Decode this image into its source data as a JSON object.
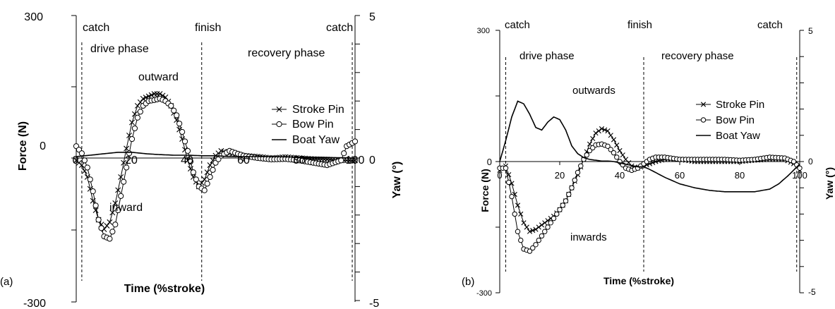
{
  "chart_data": [
    {
      "panel_label": "(a)",
      "type": "line",
      "xlabel": "Time (%stroke)",
      "ylabel": "Force (N)",
      "y2label": "Yaw (°)",
      "xlim": [
        0,
        100
      ],
      "ylim": [
        -300,
        300
      ],
      "y2lim": [
        -5,
        5
      ],
      "x_ticks": [
        "0",
        "20",
        "40",
        "60",
        "80",
        "100"
      ],
      "y_ticks": [
        "300",
        "0",
        "-300"
      ],
      "y2_ticks": [
        "5",
        "0",
        "-5"
      ],
      "phase_lines": [
        2,
        45,
        99
      ],
      "annotations": [
        "catch",
        "finish",
        "catch",
        "drive phase",
        "recovery phase",
        "outward",
        "inward"
      ],
      "legend": [
        "Stroke Pin",
        "Bow Pin",
        "Boat Yaw"
      ],
      "legend_position": "right",
      "series": [
        {
          "name": "Stroke Pin",
          "axis": "left",
          "marker": "x",
          "x": [
            0,
            2,
            4,
            6,
            8,
            10,
            12,
            14,
            16,
            18,
            20,
            22,
            24,
            26,
            28,
            30,
            32,
            34,
            36,
            38,
            40,
            42,
            44,
            46,
            48,
            50,
            52,
            55,
            60,
            65,
            70,
            75,
            80,
            85,
            90,
            95,
            100
          ],
          "y": [
            -5,
            -15,
            -40,
            -90,
            -130,
            -150,
            -135,
            -95,
            -40,
            20,
            75,
            110,
            125,
            130,
            135,
            135,
            128,
            110,
            80,
            40,
            -5,
            -40,
            -60,
            -45,
            -15,
            5,
            15,
            10,
            5,
            3,
            0,
            2,
            0,
            -2,
            -3,
            -5,
            -5
          ]
        },
        {
          "name": "Bow Pin",
          "axis": "left",
          "marker": "o",
          "x": [
            0,
            2,
            4,
            6,
            8,
            10,
            12,
            14,
            16,
            18,
            20,
            22,
            24,
            26,
            28,
            30,
            32,
            34,
            36,
            38,
            40,
            42,
            44,
            46,
            48,
            50,
            52,
            55,
            60,
            65,
            70,
            75,
            80,
            85,
            90,
            95,
            97,
            100
          ],
          "y": [
            25,
            10,
            -20,
            -70,
            -130,
            -165,
            -170,
            -140,
            -80,
            -20,
            40,
            85,
            110,
            120,
            122,
            125,
            120,
            110,
            90,
            55,
            15,
            -30,
            -60,
            -68,
            -40,
            -10,
            5,
            15,
            5,
            0,
            -3,
            -2,
            -5,
            -10,
            -15,
            -5,
            25,
            35
          ]
        },
        {
          "name": "Boat Yaw",
          "axis": "right",
          "marker": "none",
          "x": [
            0,
            5,
            10,
            15,
            20,
            25,
            30,
            35,
            40,
            45,
            50,
            55,
            60,
            70,
            80,
            90,
            100
          ],
          "y": [
            0.05,
            0.1,
            0.15,
            0.2,
            0.2,
            0.15,
            0.12,
            0.1,
            0.1,
            0.08,
            0.08,
            0.05,
            0.05,
            0.05,
            0.03,
            0.02,
            0.0
          ]
        }
      ]
    },
    {
      "panel_label": "(b)",
      "type": "line",
      "xlabel": "Time (%stroke)",
      "ylabel": "Force (N)",
      "y2label": "Yaw (°)",
      "xlim": [
        0,
        100
      ],
      "ylim": [
        -300,
        300
      ],
      "y2lim": [
        -5,
        5
      ],
      "x_ticks": [
        "0",
        "20",
        "40",
        "60",
        "80",
        "100"
      ],
      "y_ticks": [
        "300",
        "0",
        "-300"
      ],
      "y2_ticks": [
        "5",
        "0",
        "-5"
      ],
      "phase_lines": [
        2,
        48,
        99
      ],
      "annotations": [
        "catch",
        "finish",
        "catch",
        "drive phase",
        "recovery phase",
        "outwards",
        "inwards"
      ],
      "legend": [
        "Stroke Pin",
        "Bow Pin",
        "Boat Yaw"
      ],
      "legend_position": "right",
      "series": [
        {
          "name": "Stroke Pin",
          "axis": "left",
          "marker": "x",
          "x": [
            0,
            2,
            4,
            6,
            8,
            10,
            12,
            14,
            16,
            18,
            20,
            22,
            24,
            26,
            28,
            30,
            32,
            34,
            36,
            38,
            40,
            42,
            44,
            46,
            48,
            50,
            52,
            55,
            60,
            65,
            70,
            75,
            80,
            85,
            90,
            95,
            98,
            100
          ],
          "y": [
            -20,
            -10,
            -50,
            -100,
            -140,
            -160,
            -155,
            -145,
            -135,
            -125,
            -110,
            -90,
            -60,
            -30,
            5,
            40,
            65,
            75,
            70,
            50,
            25,
            5,
            -10,
            -15,
            -10,
            -5,
            0,
            5,
            5,
            0,
            0,
            0,
            0,
            3,
            5,
            5,
            -5,
            -20
          ]
        },
        {
          "name": "Bow Pin",
          "axis": "left",
          "marker": "o",
          "x": [
            0,
            2,
            4,
            6,
            8,
            10,
            12,
            14,
            16,
            18,
            20,
            22,
            24,
            26,
            28,
            30,
            32,
            34,
            36,
            38,
            40,
            42,
            44,
            46,
            48,
            50,
            52,
            55,
            60,
            65,
            70,
            75,
            80,
            85,
            90,
            95,
            98,
            100
          ],
          "y": [
            -15,
            -15,
            -80,
            -160,
            -200,
            -205,
            -190,
            -170,
            -150,
            -130,
            -110,
            -90,
            -60,
            -25,
            5,
            25,
            38,
            40,
            35,
            20,
            0,
            -15,
            -20,
            -15,
            -5,
            5,
            10,
            10,
            5,
            5,
            5,
            5,
            3,
            5,
            10,
            8,
            0,
            -15
          ]
        },
        {
          "name": "Boat Yaw",
          "axis": "right",
          "marker": "none",
          "x": [
            0,
            2,
            4,
            6,
            8,
            10,
            12,
            14,
            16,
            18,
            20,
            22,
            24,
            26,
            28,
            30,
            32,
            34,
            36,
            38,
            40,
            42,
            44,
            46,
            48,
            50,
            55,
            60,
            65,
            70,
            75,
            80,
            85,
            90,
            93,
            96,
            100
          ],
          "y": [
            0,
            0.8,
            1.7,
            2.3,
            2.2,
            1.8,
            1.3,
            1.2,
            1.5,
            1.7,
            1.6,
            1.2,
            0.6,
            0.3,
            0.15,
            0.08,
            0.05,
            0.02,
            0.02,
            0.0,
            -0.05,
            -0.1,
            -0.15,
            -0.2,
            -0.2,
            -0.3,
            -0.6,
            -0.85,
            -1.0,
            -1.1,
            -1.15,
            -1.15,
            -1.15,
            -1.05,
            -0.85,
            -0.55,
            -0.1
          ]
        }
      ]
    }
  ]
}
